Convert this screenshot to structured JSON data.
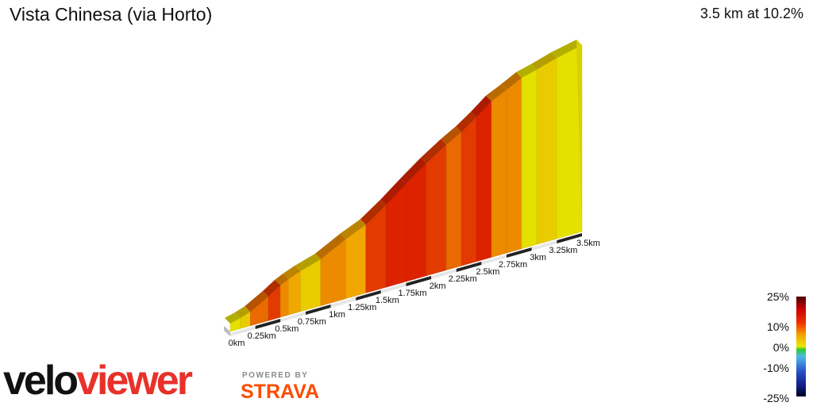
{
  "header": {
    "title": "Vista Chinesa (via Horto)",
    "summary": "3.5 km at 10.2%"
  },
  "scale": {
    "labels": [
      "25%",
      "10%",
      "0%",
      "-10%",
      "-25%"
    ]
  },
  "brand": {
    "logo_text": "veloviewer",
    "powered_by": "POWERED BY",
    "strava": "STRAVA"
  },
  "chart_data": {
    "type": "area",
    "title": "Vista Chinesa (via Horto)",
    "subtitle": "3.5 km at 10.2%",
    "distance_km": 3.5,
    "average_gradient_pct": 10.2,
    "x_ticks": [
      "0km",
      "0.25km",
      "0.5km",
      "0.75km",
      "1km",
      "1.25km",
      "1.5km",
      "1.75km",
      "2km",
      "2.25km",
      "2.5km",
      "2.75km",
      "3km",
      "3.25km",
      "3.5km"
    ],
    "segments": [
      {
        "start_km": 0.0,
        "end_km": 0.1,
        "gradient_pct": 6
      },
      {
        "start_km": 0.1,
        "end_km": 0.2,
        "gradient_pct": 8
      },
      {
        "start_km": 0.2,
        "end_km": 0.38,
        "gradient_pct": 13
      },
      {
        "start_km": 0.38,
        "end_km": 0.5,
        "gradient_pct": 15
      },
      {
        "start_km": 0.5,
        "end_km": 0.58,
        "gradient_pct": 11
      },
      {
        "start_km": 0.58,
        "end_km": 0.7,
        "gradient_pct": 9
      },
      {
        "start_km": 0.7,
        "end_km": 0.9,
        "gradient_pct": 7
      },
      {
        "start_km": 0.9,
        "end_km": 1.15,
        "gradient_pct": 12
      },
      {
        "start_km": 1.15,
        "end_km": 1.35,
        "gradient_pct": 10
      },
      {
        "start_km": 1.35,
        "end_km": 1.55,
        "gradient_pct": 16
      },
      {
        "start_km": 1.55,
        "end_km": 1.75,
        "gradient_pct": 18
      },
      {
        "start_km": 1.75,
        "end_km": 1.95,
        "gradient_pct": 17
      },
      {
        "start_km": 1.95,
        "end_km": 2.15,
        "gradient_pct": 15
      },
      {
        "start_km": 2.15,
        "end_km": 2.3,
        "gradient_pct": 13
      },
      {
        "start_km": 2.3,
        "end_km": 2.45,
        "gradient_pct": 16
      },
      {
        "start_km": 2.45,
        "end_km": 2.6,
        "gradient_pct": 18
      },
      {
        "start_km": 2.6,
        "end_km": 2.75,
        "gradient_pct": 11
      },
      {
        "start_km": 2.75,
        "end_km": 2.9,
        "gradient_pct": 12
      },
      {
        "start_km": 2.9,
        "end_km": 3.05,
        "gradient_pct": 6
      },
      {
        "start_km": 3.05,
        "end_km": 3.25,
        "gradient_pct": 7
      },
      {
        "start_km": 3.25,
        "end_km": 3.5,
        "gradient_pct": 5
      }
    ],
    "color_scale": [
      "25%",
      "10%",
      "0%",
      "-10%",
      "-25%"
    ],
    "colors": {
      "low": "#e8e000",
      "mid": "#f08000",
      "high": "#e02000",
      "max": "#c00000"
    }
  }
}
